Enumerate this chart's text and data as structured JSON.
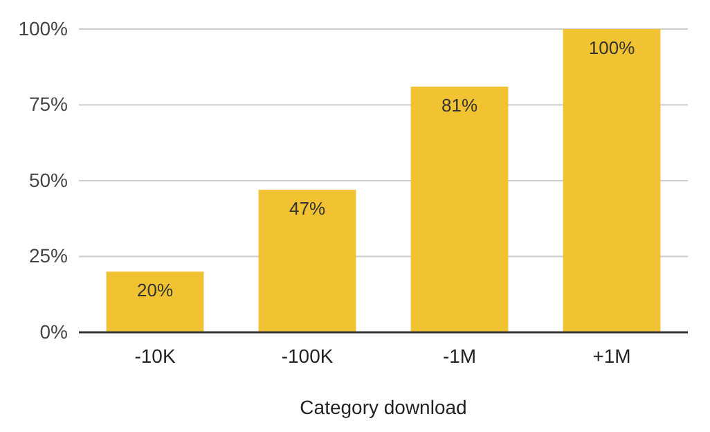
{
  "chart_data": {
    "type": "bar",
    "xlabel": "Category download",
    "categories": [
      "-10K",
      "-100K",
      "-1M",
      "+1M"
    ],
    "values": [
      20,
      47,
      81,
      100
    ],
    "color": "#f1c232",
    "value_labels": [
      "20%",
      "47%",
      "81%",
      "100%"
    ],
    "ylim": [
      0,
      100
    ],
    "yticks": [
      {
        "value": 0,
        "label": "0%"
      },
      {
        "value": 25,
        "label": "25%"
      },
      {
        "value": 50,
        "label": "50%"
      },
      {
        "value": 75,
        "label": "75%"
      },
      {
        "value": 100,
        "label": "100%"
      }
    ],
    "grid": "y"
  }
}
